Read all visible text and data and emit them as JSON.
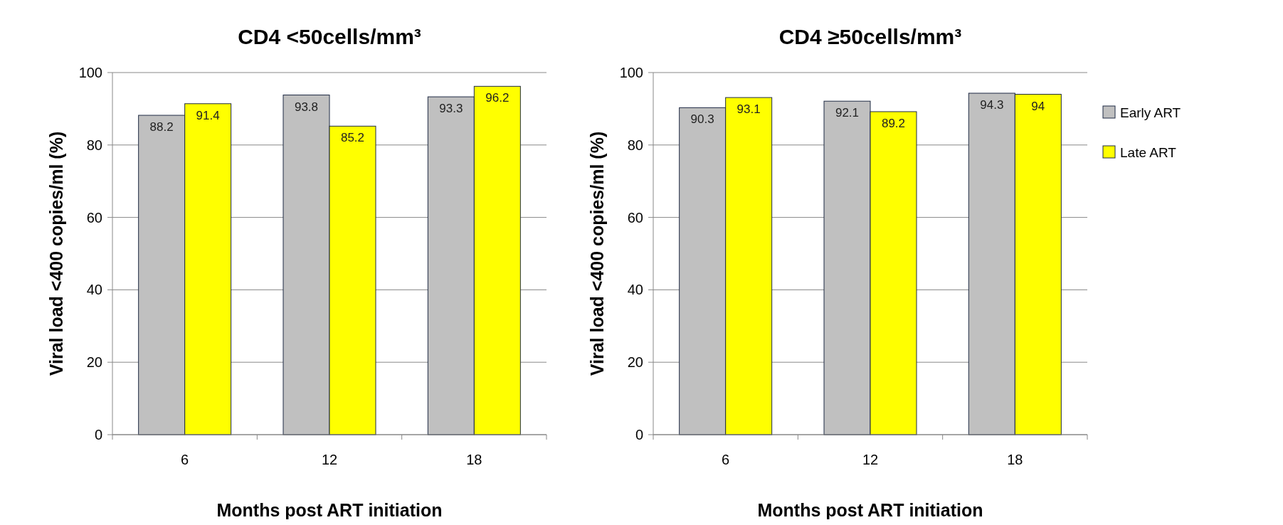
{
  "chart_data": [
    {
      "type": "bar",
      "title": "CD4 <50cells/mm³",
      "xlabel": "Months post ART initiation",
      "ylabel": "Viral load <400 copies/ml (%)",
      "categories": [
        "6",
        "12",
        "18"
      ],
      "series": [
        {
          "color": "#c0c0c0",
          "values": [
            88.2,
            93.8,
            93.3
          ]
        },
        {
          "color": "#ffff00",
          "values": [
            91.4,
            85.2,
            96.2
          ]
        }
      ],
      "ylim": [
        0,
        100
      ],
      "yticks": [
        0,
        20,
        40,
        60,
        80,
        100
      ],
      "grid": "y",
      "data_labels": true,
      "legend": false
    },
    {
      "type": "bar",
      "title": "CD4 ≥50cells/mm³",
      "xlabel": "Months post ART initiation",
      "ylabel": "Viral load <400 copies/ml (%)",
      "categories": [
        "6",
        "12",
        "18"
      ],
      "series": [
        {
          "name": "Early ART",
          "color": "#c0c0c0",
          "values": [
            90.3,
            92.1,
            94.3
          ]
        },
        {
          "name": "Late ART",
          "color": "#ffff00",
          "values": [
            93.1,
            89.2,
            94
          ]
        }
      ],
      "ylim": [
        0,
        100
      ],
      "yticks": [
        0,
        20,
        40,
        60,
        80,
        100
      ],
      "grid": "y",
      "data_labels": true,
      "legend": "right"
    }
  ]
}
